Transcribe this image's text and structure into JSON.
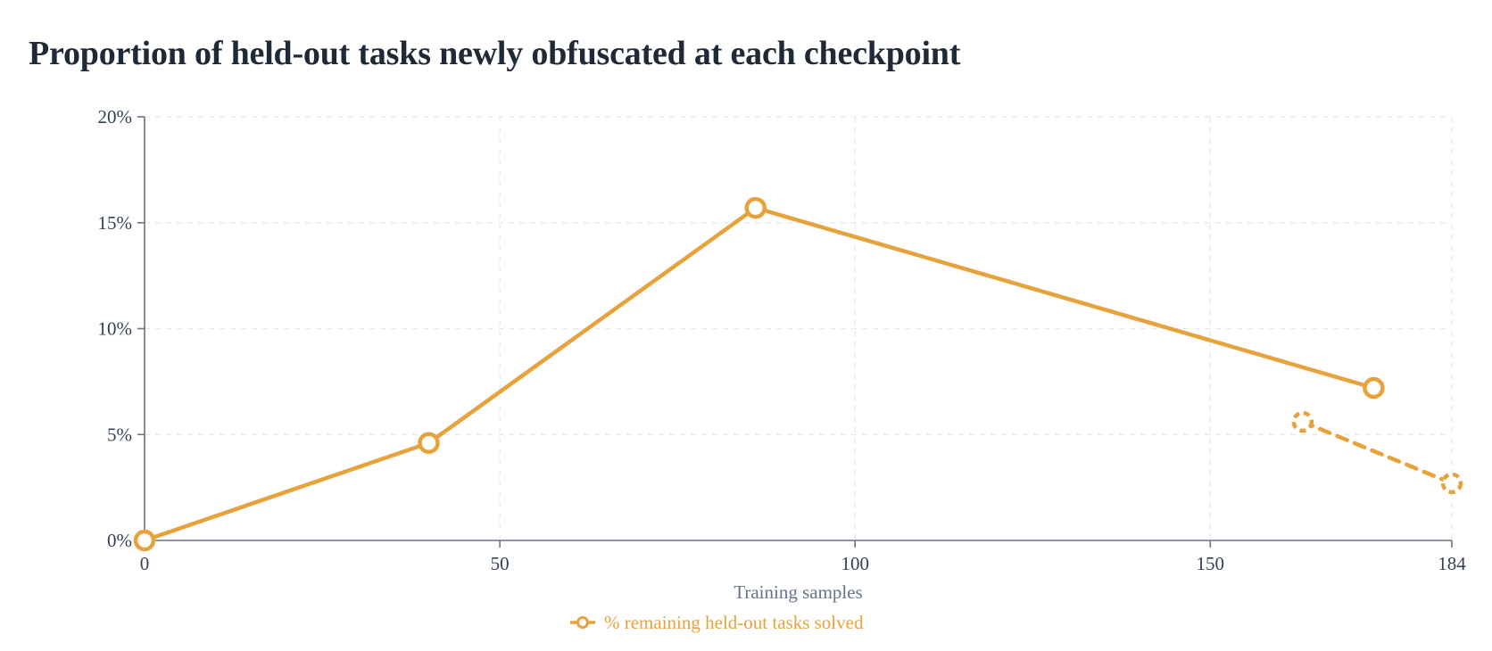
{
  "chart_data": {
    "type": "line",
    "title": "Proportion of held-out tasks newly obfuscated at each checkpoint",
    "xlabel": "Training samples",
    "ylabel": "",
    "xlim": [
      0,
      184
    ],
    "ylim": [
      0,
      20
    ],
    "x_ticks": [
      0,
      50,
      100,
      150,
      184
    ],
    "y_ticks": [
      0,
      5,
      10,
      15,
      20
    ],
    "x_tick_labels": [
      "0",
      "50",
      "100",
      "150",
      "184"
    ],
    "y_tick_labels": [
      "0%",
      "5%",
      "10%",
      "15%",
      "20%"
    ],
    "grid": true,
    "legend_position": "bottom-center",
    "series": [
      {
        "name": "% remaining held-out tasks solved",
        "color": "#e8a23c",
        "line_style": "solid",
        "marker": "hollow-circle",
        "points": [
          {
            "x": 0,
            "y": 0
          },
          {
            "x": 40,
            "y": 4.6
          },
          {
            "x": 86,
            "y": 15.7
          },
          {
            "x": 173,
            "y": 7.2
          }
        ]
      },
      {
        "name": "",
        "color": "#e8a23c",
        "line_style": "dashed",
        "marker": "dashed-hollow-circle",
        "points": [
          {
            "x": 163,
            "y": 5.6
          },
          {
            "x": 184,
            "y": 2.7
          }
        ]
      }
    ]
  }
}
